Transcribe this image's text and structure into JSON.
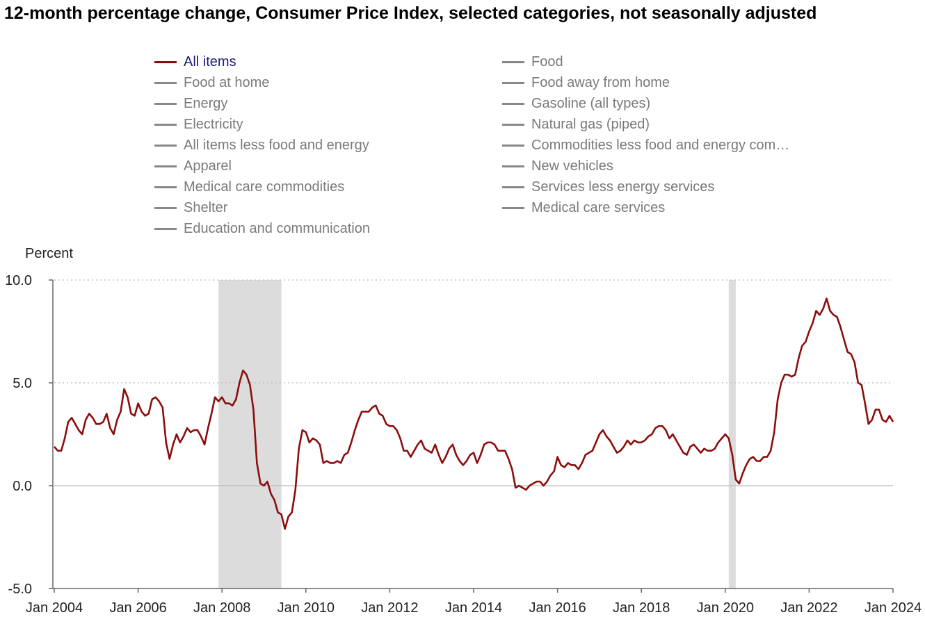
{
  "chart_data": {
    "type": "line",
    "title": "12-month percentage change, Consumer Price Index, selected categories, not seasonally adjusted",
    "ylabel": "Percent",
    "xlabel": "",
    "ylim": [
      -5,
      10
    ],
    "yticks": [
      "10.0",
      "5.0",
      "0.0",
      "-5.0"
    ],
    "ytick_values": [
      10,
      5,
      0,
      -5
    ],
    "xlim": [
      "2004-01",
      "2024-01"
    ],
    "xticks": [
      "Jan 2004",
      "Jan 2006",
      "Jan 2008",
      "Jan 2010",
      "Jan 2012",
      "Jan 2014",
      "Jan 2016",
      "Jan 2018",
      "Jan 2020",
      "Jan 2022",
      "Jan 2024"
    ],
    "xtick_years": [
      2004,
      2006,
      2008,
      2010,
      2012,
      2014,
      2016,
      2018,
      2020,
      2022,
      2024
    ],
    "recessions": [
      {
        "start": "2007-12",
        "end": "2009-06"
      },
      {
        "start": "2020-02",
        "end": "2020-04"
      }
    ],
    "legend": [
      {
        "name": "All items",
        "active": true
      },
      {
        "name": "Food at home",
        "active": false
      },
      {
        "name": "Energy",
        "active": false
      },
      {
        "name": "Electricity",
        "active": false
      },
      {
        "name": "All items less food and energy",
        "active": false
      },
      {
        "name": "Apparel",
        "active": false
      },
      {
        "name": "Medical care commodities",
        "active": false
      },
      {
        "name": "Shelter",
        "active": false
      },
      {
        "name": "Education and communication",
        "active": false
      },
      {
        "name": "Food",
        "active": false
      },
      {
        "name": "Food away from home",
        "active": false
      },
      {
        "name": "Gasoline (all types)",
        "active": false
      },
      {
        "name": "Natural gas (piped)",
        "active": false
      },
      {
        "name": "Commodities less food and energy com…",
        "active": false
      },
      {
        "name": "New vehicles",
        "active": false
      },
      {
        "name": "Services less energy services",
        "active": false
      },
      {
        "name": "Medical care services",
        "active": false
      }
    ],
    "colors": {
      "active_series": "#8b0d0d",
      "inactive_series": "#888888",
      "recession": "#dcdcdc",
      "grid": "#bbbbbb"
    },
    "series": [
      {
        "name": "All items",
        "start": "2004-01",
        "frequency": "monthly",
        "values": [
          1.9,
          1.7,
          1.7,
          2.3,
          3.1,
          3.3,
          3.0,
          2.7,
          2.5,
          3.2,
          3.5,
          3.3,
          3.0,
          3.0,
          3.1,
          3.5,
          2.8,
          2.5,
          3.2,
          3.6,
          4.7,
          4.3,
          3.5,
          3.4,
          4.0,
          3.6,
          3.4,
          3.5,
          4.2,
          4.3,
          4.1,
          3.8,
          2.1,
          1.3,
          2.0,
          2.5,
          2.1,
          2.4,
          2.8,
          2.6,
          2.7,
          2.7,
          2.4,
          2.0,
          2.8,
          3.5,
          4.3,
          4.1,
          4.3,
          4.0,
          4.0,
          3.9,
          4.2,
          5.0,
          5.6,
          5.4,
          4.9,
          3.7,
          1.1,
          0.1,
          0.0,
          0.2,
          -0.4,
          -0.7,
          -1.3,
          -1.4,
          -2.1,
          -1.5,
          -1.3,
          -0.2,
          1.8,
          2.7,
          2.6,
          2.1,
          2.3,
          2.2,
          2.0,
          1.1,
          1.2,
          1.1,
          1.1,
          1.2,
          1.1,
          1.5,
          1.6,
          2.1,
          2.7,
          3.2,
          3.6,
          3.6,
          3.6,
          3.8,
          3.9,
          3.5,
          3.4,
          3.0,
          2.9,
          2.9,
          2.7,
          2.3,
          1.7,
          1.7,
          1.4,
          1.7,
          2.0,
          2.2,
          1.8,
          1.7,
          1.6,
          2.0,
          1.5,
          1.1,
          1.4,
          1.8,
          2.0,
          1.5,
          1.2,
          1.0,
          1.2,
          1.5,
          1.6,
          1.1,
          1.5,
          2.0,
          2.1,
          2.1,
          2.0,
          1.7,
          1.7,
          1.7,
          1.3,
          0.8,
          -0.1,
          0.0,
          -0.1,
          -0.2,
          0.0,
          0.1,
          0.2,
          0.2,
          0.0,
          0.2,
          0.5,
          0.7,
          1.4,
          1.0,
          0.9,
          1.1,
          1.0,
          1.0,
          0.8,
          1.1,
          1.5,
          1.6,
          1.7,
          2.1,
          2.5,
          2.7,
          2.4,
          2.2,
          1.9,
          1.6,
          1.7,
          1.9,
          2.2,
          2.0,
          2.2,
          2.1,
          2.1,
          2.2,
          2.4,
          2.5,
          2.8,
          2.9,
          2.9,
          2.7,
          2.3,
          2.5,
          2.2,
          1.9,
          1.6,
          1.5,
          1.9,
          2.0,
          1.8,
          1.6,
          1.8,
          1.7,
          1.7,
          1.8,
          2.1,
          2.3,
          2.5,
          2.3,
          1.5,
          0.3,
          0.1,
          0.6,
          1.0,
          1.3,
          1.4,
          1.2,
          1.2,
          1.4,
          1.4,
          1.7,
          2.6,
          4.2,
          5.0,
          5.4,
          5.4,
          5.3,
          5.4,
          6.2,
          6.8,
          7.0,
          7.5,
          7.9,
          8.5,
          8.3,
          8.6,
          9.1,
          8.5,
          8.3,
          8.2,
          7.7,
          7.1,
          6.5,
          6.4,
          6.0,
          5.0,
          4.9,
          4.0,
          3.0,
          3.2,
          3.7,
          3.7,
          3.2,
          3.1,
          3.4,
          3.1
        ]
      }
    ]
  }
}
